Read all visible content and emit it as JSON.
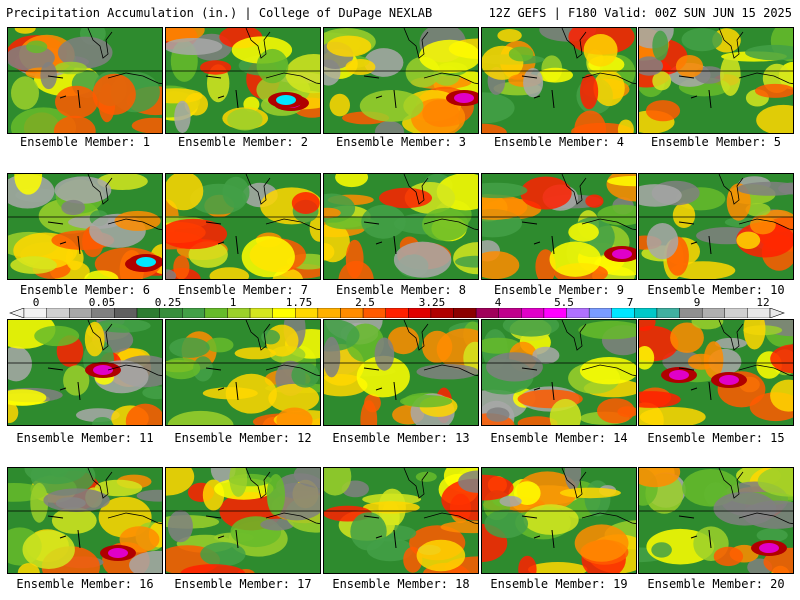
{
  "header": {
    "left": "Precipitation Accumulation (in.) | College of DuPage NEXLAB",
    "right": "12Z GEFS | F180 Valid: 00Z SUN JUN 15 2025"
  },
  "members": [
    {
      "label": "Ensemble Member: 1"
    },
    {
      "label": "Ensemble Member: 2"
    },
    {
      "label": "Ensemble Member: 3"
    },
    {
      "label": "Ensemble Member: 4"
    },
    {
      "label": "Ensemble Member: 5"
    },
    {
      "label": "Ensemble Member: 6"
    },
    {
      "label": "Ensemble Member: 7"
    },
    {
      "label": "Ensemble Member: 8"
    },
    {
      "label": "Ensemble Member: 9"
    },
    {
      "label": "Ensemble Member: 10"
    },
    {
      "label": "Ensemble Member: 11"
    },
    {
      "label": "Ensemble Member: 12"
    },
    {
      "label": "Ensemble Member: 13"
    },
    {
      "label": "Ensemble Member: 14"
    },
    {
      "label": "Ensemble Member: 15"
    },
    {
      "label": "Ensemble Member: 16"
    },
    {
      "label": "Ensemble Member: 17"
    },
    {
      "label": "Ensemble Member: 18"
    },
    {
      "label": "Ensemble Member: 19"
    },
    {
      "label": "Ensemble Member: 20"
    }
  ],
  "colorbar": {
    "tick_labels": [
      "0",
      "0.05",
      "0.25",
      "1",
      "1.75",
      "2.5",
      "3.25",
      "4",
      "5.5",
      "7",
      "9",
      "12"
    ],
    "colors": [
      "#f2f2f2",
      "#d0d0d0",
      "#a8a8a8",
      "#808080",
      "#606060",
      "#2e7d32",
      "#388e3c",
      "#43a047",
      "#66bb2a",
      "#9bd02a",
      "#d4e61e",
      "#ffff00",
      "#ffd700",
      "#ffb000",
      "#ff8c00",
      "#ff5a00",
      "#ff2000",
      "#e00000",
      "#b00000",
      "#8b0000",
      "#a0005a",
      "#c0008c",
      "#e000c8",
      "#ff00ff",
      "#b070ff",
      "#7a9cff",
      "#00e6ff",
      "#00c8c8",
      "#40b0a0",
      "#909090",
      "#b0b0b0",
      "#d0d0d0",
      "#e8e8e8"
    ]
  }
}
